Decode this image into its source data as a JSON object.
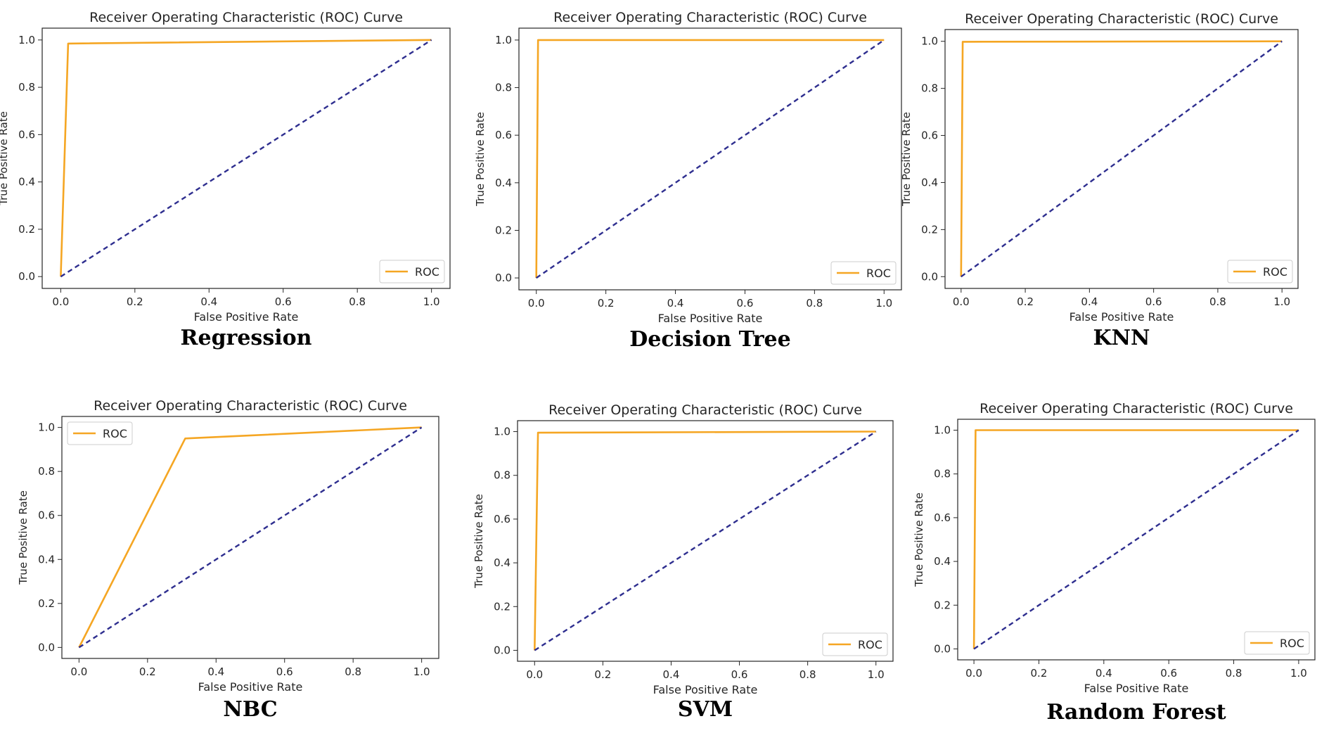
{
  "colors": {
    "roc_line": "#f5a623",
    "diagonal": "#2e2e8f",
    "axes": "#262626",
    "legend_border": "#cccccc"
  },
  "chart_data": [
    {
      "type": "line",
      "title": "Receiver Operating Characteristic (ROC) Curve",
      "caption": "Regression",
      "xlabel": "False Positive Rate",
      "ylabel": "True Positive Rate",
      "xlim": [
        0,
        1
      ],
      "ylim": [
        0,
        1
      ],
      "xticks": [
        "0.0",
        "0.2",
        "0.4",
        "0.6",
        "0.8",
        "1.0"
      ],
      "yticks": [
        "0.0",
        "0.2",
        "0.4",
        "0.6",
        "0.8",
        "1.0"
      ],
      "grid": false,
      "legend": {
        "position": "bottom-right",
        "entries": [
          "ROC"
        ]
      },
      "series": [
        {
          "name": "ROC",
          "x": [
            0,
            0.02,
            1
          ],
          "y": [
            0,
            0.985,
            1
          ]
        },
        {
          "x": [
            0,
            1
          ],
          "y": [
            0,
            1
          ],
          "style": "dashed"
        }
      ]
    },
    {
      "type": "line",
      "title": "Receiver Operating Characteristic (ROC) Curve",
      "caption": "Decision Tree",
      "xlabel": "False Positive Rate",
      "ylabel": "True Positive Rate",
      "xlim": [
        0,
        1
      ],
      "ylim": [
        0,
        1
      ],
      "xticks": [
        "0.0",
        "0.2",
        "0.4",
        "0.6",
        "0.8",
        "1.0"
      ],
      "yticks": [
        "0.0",
        "0.2",
        "0.4",
        "0.6",
        "0.8",
        "1.0"
      ],
      "grid": false,
      "legend": {
        "position": "bottom-right",
        "entries": [
          "ROC"
        ]
      },
      "series": [
        {
          "name": "ROC",
          "x": [
            0,
            0.005,
            1
          ],
          "y": [
            0,
            1.0,
            1
          ]
        },
        {
          "x": [
            0,
            1
          ],
          "y": [
            0,
            1
          ],
          "style": "dashed"
        }
      ]
    },
    {
      "type": "line",
      "title": "Receiver Operating Characteristic (ROC) Curve",
      "caption": "KNN",
      "xlabel": "False Positive Rate",
      "ylabel": "True Positive Rate",
      "xlim": [
        0,
        1
      ],
      "ylim": [
        0,
        1
      ],
      "xticks": [
        "0.0",
        "0.2",
        "0.4",
        "0.6",
        "0.8",
        "1.0"
      ],
      "yticks": [
        "0.0",
        "0.2",
        "0.4",
        "0.6",
        "0.8",
        "1.0"
      ],
      "grid": false,
      "legend": {
        "position": "bottom-right",
        "entries": [
          "ROC"
        ]
      },
      "series": [
        {
          "name": "ROC",
          "x": [
            0,
            0.005,
            1
          ],
          "y": [
            0,
            0.998,
            1
          ]
        },
        {
          "x": [
            0,
            1
          ],
          "y": [
            0,
            1
          ],
          "style": "dashed"
        }
      ]
    },
    {
      "type": "line",
      "title": "Receiver Operating Characteristic (ROC) Curve",
      "caption": "NBC",
      "xlabel": "False Positive Rate",
      "ylabel": "True Positive Rate",
      "xlim": [
        0,
        1
      ],
      "ylim": [
        0,
        1
      ],
      "xticks": [
        "0.0",
        "0.2",
        "0.4",
        "0.6",
        "0.8",
        "1.0"
      ],
      "yticks": [
        "0.0",
        "0.2",
        "0.4",
        "0.6",
        "0.8",
        "1.0"
      ],
      "grid": false,
      "legend": {
        "position": "top-left",
        "entries": [
          "ROC"
        ]
      },
      "series": [
        {
          "name": "ROC",
          "x": [
            0,
            0.31,
            1
          ],
          "y": [
            0,
            0.95,
            1
          ]
        },
        {
          "x": [
            0,
            1
          ],
          "y": [
            0,
            1
          ],
          "style": "dashed"
        }
      ]
    },
    {
      "type": "line",
      "title": "Receiver Operating Characteristic (ROC) Curve",
      "caption": "SVM",
      "xlabel": "False Positive Rate",
      "ylabel": "True Positive Rate",
      "xlim": [
        0,
        1
      ],
      "ylim": [
        0,
        1
      ],
      "xticks": [
        "0.0",
        "0.2",
        "0.4",
        "0.6",
        "0.8",
        "1.0"
      ],
      "yticks": [
        "0.0",
        "0.2",
        "0.4",
        "0.6",
        "0.8",
        "1.0"
      ],
      "grid": false,
      "legend": {
        "position": "bottom-right",
        "entries": [
          "ROC"
        ]
      },
      "series": [
        {
          "name": "ROC",
          "x": [
            0,
            0.01,
            1
          ],
          "y": [
            0,
            0.995,
            1
          ]
        },
        {
          "x": [
            0,
            1
          ],
          "y": [
            0,
            1
          ],
          "style": "dashed"
        }
      ]
    },
    {
      "type": "line",
      "title": "Receiver Operating Characteristic (ROC) Curve",
      "caption": "Random Forest",
      "xlabel": "False Positive Rate",
      "ylabel": "True Positive Rate",
      "xlim": [
        0,
        1
      ],
      "ylim": [
        0,
        1
      ],
      "xticks": [
        "0.0",
        "0.2",
        "0.4",
        "0.6",
        "0.8",
        "1.0"
      ],
      "yticks": [
        "0.0",
        "0.2",
        "0.4",
        "0.6",
        "0.8",
        "1.0"
      ],
      "grid": false,
      "legend": {
        "position": "bottom-right",
        "entries": [
          "ROC"
        ]
      },
      "series": [
        {
          "name": "ROC",
          "x": [
            0,
            0.005,
            1
          ],
          "y": [
            0,
            1.0,
            1
          ]
        },
        {
          "x": [
            0,
            1
          ],
          "y": [
            0,
            1
          ],
          "style": "dashed"
        }
      ]
    }
  ]
}
